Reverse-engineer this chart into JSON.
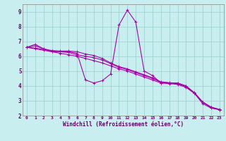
{
  "xlabel": "Windchill (Refroidissement éolien,°C)",
  "bg_color": "#c8eef0",
  "line_color": "#aa00aa",
  "grid_color": "#99cccc",
  "xmin": -0.5,
  "xmax": 23.5,
  "ymin": 2,
  "ymax": 9.5,
  "yticks": [
    2,
    3,
    4,
    5,
    6,
    7,
    8,
    9
  ],
  "xticks": [
    0,
    1,
    2,
    3,
    4,
    5,
    6,
    7,
    8,
    9,
    10,
    11,
    12,
    13,
    14,
    15,
    16,
    17,
    18,
    19,
    20,
    21,
    22,
    23
  ],
  "series": [
    {
      "x": [
        0,
        1,
        2,
        3,
        4,
        5,
        6,
        7,
        8,
        9,
        10,
        11,
        12,
        13,
        14,
        15,
        16,
        17,
        18,
        19,
        20,
        21,
        22,
        23
      ],
      "y": [
        6.6,
        6.8,
        6.5,
        6.3,
        6.3,
        6.3,
        6.2,
        4.4,
        4.2,
        4.35,
        4.8,
        8.1,
        9.1,
        8.3,
        5.0,
        4.7,
        4.2,
        4.2,
        4.2,
        4.0,
        3.5,
        2.8,
        2.5,
        2.4
      ]
    },
    {
      "x": [
        0,
        1,
        2,
        3,
        4,
        5,
        6,
        7,
        8,
        9,
        10,
        11,
        12,
        13,
        14,
        15,
        16,
        17,
        18,
        19,
        20,
        21,
        22,
        23
      ],
      "y": [
        6.6,
        6.5,
        6.4,
        6.3,
        6.2,
        6.1,
        6.0,
        5.85,
        5.7,
        5.55,
        5.35,
        5.15,
        5.0,
        4.8,
        4.6,
        4.4,
        4.2,
        4.15,
        4.1,
        3.9,
        3.5,
        2.9,
        2.55,
        2.4
      ]
    },
    {
      "x": [
        0,
        1,
        2,
        3,
        4,
        5,
        6,
        7,
        8,
        9,
        10,
        11,
        12,
        13,
        14,
        15,
        16,
        17,
        18,
        19,
        20,
        21,
        22,
        23
      ],
      "y": [
        6.6,
        6.55,
        6.45,
        6.35,
        6.3,
        6.25,
        6.1,
        6.0,
        5.9,
        5.75,
        5.5,
        5.25,
        5.1,
        4.9,
        4.7,
        4.5,
        4.25,
        4.2,
        4.15,
        3.95,
        3.5,
        2.9,
        2.55,
        2.4
      ]
    },
    {
      "x": [
        0,
        1,
        2,
        3,
        4,
        5,
        6,
        7,
        8,
        9,
        10,
        11,
        12,
        13,
        14,
        15,
        16,
        17,
        18,
        19,
        20,
        21,
        22,
        23
      ],
      "y": [
        6.6,
        6.7,
        6.5,
        6.38,
        6.35,
        6.35,
        6.3,
        6.15,
        6.05,
        5.85,
        5.55,
        5.3,
        5.15,
        4.95,
        4.75,
        4.55,
        4.28,
        4.22,
        4.18,
        4.0,
        3.55,
        2.92,
        2.58,
        2.42
      ]
    }
  ]
}
